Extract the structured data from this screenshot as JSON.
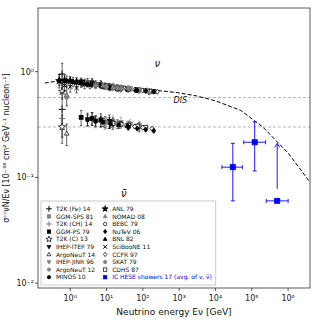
{
  "chart_data": {
    "type": "scatter",
    "xlabel": "Neutrino energy Eν [GeV]",
    "ylabel": "σᶜᶜνN/Eν [10⁻³⁸ cm² GeV⁻¹ nucleon⁻¹]",
    "log": true,
    "grid": false,
    "legend": "lower left",
    "xlim": [
      0.13,
      4000000.0
    ],
    "ylim": [
      0.009,
      4.0
    ],
    "xticks": [
      {
        "value": 1,
        "label": "10⁰"
      },
      {
        "value": 10,
        "label": "10¹"
      },
      {
        "value": 100,
        "label": "10²"
      },
      {
        "value": 1000,
        "label": "10³"
      },
      {
        "value": 10000,
        "label": "10⁴"
      },
      {
        "value": 100000,
        "label": "10⁵"
      },
      {
        "value": 1000000,
        "label": "10⁶"
      }
    ],
    "yticks": [
      {
        "value": 0.01,
        "label": "10⁻²"
      },
      {
        "value": 0.1,
        "label": "10⁻¹"
      },
      {
        "value": 1,
        "label": "10⁰"
      }
    ],
    "hlines": [
      0.57,
      0.3
    ],
    "series": [
      {
        "type": "line",
        "line_style": "dashed",
        "color": "black",
        "x": [
          0.2,
          0.5,
          1,
          2,
          5,
          10,
          30,
          100,
          300,
          1000,
          3000,
          10000,
          50000,
          200000,
          1000000,
          4000000
        ],
        "values": [
          0.78,
          0.82,
          0.83,
          0.83,
          0.8,
          0.77,
          0.73,
          0.69,
          0.66,
          0.63,
          0.59,
          0.53,
          0.43,
          0.3,
          0.17,
          0.09
        ]
      },
      {
        "type": "errorbar",
        "marker": "plus",
        "color": "black",
        "x": [
          0.6
        ],
        "values": [
          0.95
        ],
        "errors": [
          0.25
        ]
      },
      {
        "type": "errorbar",
        "marker": "plus",
        "color": "gray",
        "x": [
          0.6
        ],
        "values": [
          0.78
        ],
        "errors": [
          0.15
        ]
      },
      {
        "type": "errorbar",
        "marker": "star-open",
        "color": "black",
        "x": [
          0.6
        ],
        "values": [
          0.65
        ],
        "errors": [
          0.1
        ]
      },
      {
        "type": "errorbar",
        "marker": "triangle-up-open",
        "color": "black",
        "x": [
          0.8
        ],
        "values": [
          0.6
        ],
        "errors": [
          0.12
        ]
      },
      {
        "type": "errorbar",
        "marker": "circle",
        "color": "gray",
        "x": [
          0.8
        ],
        "values": [
          0.57
        ],
        "errors": [
          0.1
        ]
      },
      {
        "type": "errorbar",
        "marker": "star",
        "color": "black",
        "x": [
          0.5,
          0.7,
          1.0,
          1.5,
          2.5
        ],
        "values": [
          0.82,
          0.83,
          0.82,
          0.8,
          0.77
        ],
        "errors": [
          0.12,
          0.1,
          0.08,
          0.08,
          0.08
        ]
      },
      {
        "type": "errorbar",
        "marker": "circle-open",
        "color": "black",
        "x": [
          4,
          7,
          12,
          20,
          40,
          80,
          150
        ],
        "values": [
          0.8,
          0.77,
          0.73,
          0.71,
          0.69,
          0.67,
          0.65
        ],
        "errors": [
          0.06,
          0.05,
          0.04,
          0.04,
          0.04,
          0.04,
          0.04
        ]
      },
      {
        "type": "errorbar",
        "marker": "triangle-up",
        "color": "black",
        "x": [
          0.5,
          0.8,
          1.2,
          2.0,
          3.5
        ],
        "values": [
          0.84,
          0.82,
          0.8,
          0.78,
          0.75
        ],
        "errors": [
          0.1,
          0.09,
          0.08,
          0.07,
          0.06
        ]
      },
      {
        "type": "errorbar",
        "marker": "diamond-open",
        "color": "black",
        "x": [
          20,
          35,
          60,
          100,
          170,
          250
        ],
        "values": [
          0.7,
          0.685,
          0.675,
          0.665,
          0.655,
          0.645
        ],
        "errors": [
          0.015,
          0.012,
          0.01,
          0.009,
          0.009,
          0.009
        ]
      },
      {
        "type": "errorbar",
        "marker": "square-open",
        "color": "black",
        "x": [
          15,
          25,
          40,
          70,
          120,
          200
        ],
        "values": [
          0.71,
          0.695,
          0.68,
          0.67,
          0.66,
          0.65
        ],
        "errors": [
          0.02,
          0.018,
          0.015,
          0.013,
          0.012,
          0.012
        ]
      },
      {
        "type": "errorbar",
        "marker": "square",
        "color": "gray",
        "x": [
          15,
          25,
          45,
          80,
          130
        ],
        "values": [
          0.73,
          0.71,
          0.69,
          0.67,
          0.66
        ],
        "errors": [
          0.05,
          0.04,
          0.04,
          0.04,
          0.04
        ]
      },
      {
        "type": "errorbar",
        "marker": "square",
        "color": "black",
        "x": [
          2,
          4,
          7,
          12,
          20
        ],
        "values": [
          0.8,
          0.77,
          0.74,
          0.71,
          0.69
        ],
        "errors": [
          0.07,
          0.06,
          0.05,
          0.05,
          0.04
        ]
      },
      {
        "type": "errorbar",
        "marker": "triangle-down",
        "color": "black",
        "x": [
          3,
          5,
          9,
          15,
          25
        ],
        "values": [
          0.79,
          0.76,
          0.73,
          0.71,
          0.69
        ],
        "errors": [
          0.07,
          0.06,
          0.05,
          0.04,
          0.04
        ]
      },
      {
        "type": "errorbar",
        "marker": "triangle-down",
        "color": "gray",
        "x": [
          3,
          5,
          9,
          15,
          25
        ],
        "values": [
          0.78,
          0.75,
          0.72,
          0.7,
          0.68
        ],
        "errors": [
          0.06,
          0.05,
          0.04,
          0.04,
          0.04
        ]
      },
      {
        "type": "errorbar",
        "marker": "circle",
        "color": "black",
        "x": [
          3,
          5,
          8,
          13,
          22,
          38,
          65
        ],
        "values": [
          0.76,
          0.74,
          0.72,
          0.7,
          0.685,
          0.672,
          0.662
        ],
        "errors": [
          0.04,
          0.035,
          0.03,
          0.025,
          0.022,
          0.018,
          0.016
        ]
      },
      {
        "type": "errorbar",
        "marker": "triangle-up",
        "color": "gray",
        "x": [
          8,
          15,
          25,
          45,
          75,
          120
        ],
        "values": [
          0.74,
          0.71,
          0.695,
          0.68,
          0.668,
          0.658
        ],
        "errors": [
          0.04,
          0.03,
          0.025,
          0.022,
          0.018,
          0.016
        ]
      },
      {
        "type": "errorbar",
        "marker": "diamond",
        "color": "black",
        "x": [
          40,
          70,
          120,
          200
        ],
        "values": [
          0.675,
          0.665,
          0.657,
          0.648
        ],
        "errors": [
          0.012,
          0.01,
          0.009,
          0.009
        ]
      },
      {
        "type": "errorbar",
        "marker": "x",
        "color": "black",
        "x": [
          0.7,
          1.0,
          1.5
        ],
        "values": [
          0.74,
          0.72,
          0.7
        ],
        "errors": [
          0.09,
          0.08,
          0.07
        ]
      },
      {
        "type": "errorbar",
        "marker": "circle",
        "color": "gray",
        "x": [
          5,
          10,
          20,
          40
        ],
        "values": [
          0.74,
          0.72,
          0.7,
          0.69
        ],
        "errors": [
          0.05,
          0.04,
          0.04,
          0.04
        ]
      },
      {
        "type": "errorbar",
        "marker": "plus",
        "color": "black",
        "x": [
          0.6
        ],
        "values": [
          0.44
        ],
        "errors": [
          0.2
        ]
      },
      {
        "type": "errorbar",
        "marker": "plus",
        "color": "gray",
        "x": [
          0.6
        ],
        "values": [
          0.36
        ],
        "errors": [
          0.12
        ]
      },
      {
        "type": "errorbar",
        "marker": "star-open",
        "color": "black",
        "x": [
          0.6
        ],
        "values": [
          0.3
        ],
        "errors": [
          0.09
        ]
      },
      {
        "type": "errorbar",
        "marker": "triangle-up-open",
        "color": "black",
        "x": [
          0.8
        ],
        "values": [
          0.26
        ],
        "errors": [
          0.06
        ]
      },
      {
        "type": "errorbar",
        "marker": "circle-open",
        "color": "black",
        "x": [
          4,
          7,
          12,
          20,
          40,
          80
        ],
        "values": [
          0.36,
          0.34,
          0.33,
          0.32,
          0.31,
          0.3
        ],
        "errors": [
          0.05,
          0.04,
          0.04,
          0.03,
          0.03,
          0.03
        ]
      },
      {
        "type": "errorbar",
        "marker": "square",
        "color": "gray",
        "x": [
          15,
          25,
          45,
          80
        ],
        "values": [
          0.34,
          0.33,
          0.32,
          0.31
        ],
        "errors": [
          0.04,
          0.04,
          0.03,
          0.03
        ]
      },
      {
        "type": "errorbar",
        "marker": "square",
        "color": "black",
        "x": [
          2,
          4,
          7,
          12
        ],
        "values": [
          0.37,
          0.36,
          0.35,
          0.34
        ],
        "errors": [
          0.06,
          0.05,
          0.05,
          0.05
        ]
      },
      {
        "type": "errorbar",
        "marker": "triangle-down",
        "color": "black",
        "x": [
          3,
          5,
          9,
          15
        ],
        "values": [
          0.355,
          0.345,
          0.335,
          0.325
        ],
        "errors": [
          0.05,
          0.04,
          0.04,
          0.04
        ]
      },
      {
        "type": "errorbar",
        "marker": "triangle-down",
        "color": "gray",
        "x": [
          3,
          5,
          9,
          15
        ],
        "values": [
          0.345,
          0.335,
          0.325,
          0.315
        ],
        "errors": [
          0.04,
          0.04,
          0.04,
          0.03
        ]
      },
      {
        "type": "errorbar",
        "marker": "square-open",
        "color": "black",
        "x": [
          15,
          25,
          40,
          70,
          120
        ],
        "values": [
          0.325,
          0.318,
          0.312,
          0.305,
          0.298
        ],
        "errors": [
          0.02,
          0.018,
          0.015,
          0.013,
          0.012
        ]
      },
      {
        "type": "errorbar",
        "marker": "diamond-open",
        "color": "black",
        "x": [
          20,
          35,
          60,
          100,
          180
        ],
        "values": [
          0.318,
          0.31,
          0.303,
          0.296,
          0.289
        ],
        "errors": [
          0.015,
          0.013,
          0.011,
          0.01,
          0.01
        ]
      },
      {
        "type": "errorbar",
        "marker": "circle",
        "color": "gray",
        "x": [
          5,
          10,
          20
        ],
        "values": [
          0.34,
          0.33,
          0.32
        ],
        "errors": [
          0.04,
          0.04,
          0.03
        ]
      },
      {
        "type": "errorbar",
        "marker": "diamond",
        "color": "black",
        "x": [
          40,
          70,
          120,
          200
        ],
        "values": [
          0.298,
          0.29,
          0.283,
          0.276
        ],
        "errors": [
          0.012,
          0.01,
          0.009,
          0.009
        ]
      },
      {
        "type": "errorbar",
        "marker": "circle",
        "color": "black",
        "x": [
          3,
          5,
          8,
          13,
          22,
          38
        ],
        "values": [
          0.35,
          0.34,
          0.332,
          0.322,
          0.313,
          0.305
        ],
        "errors": [
          0.04,
          0.035,
          0.03,
          0.025,
          0.022,
          0.018
        ]
      },
      {
        "type": "errorbar_xy",
        "marker": "square",
        "color": "blue",
        "x": [
          30000,
          120000
        ],
        "values": [
          0.125,
          0.215
        ],
        "xerr_lo": [
          15000,
          60000
        ],
        "xerr_hi": [
          25000,
          120000
        ],
        "yerr_lo": [
          0.065,
          0.1
        ],
        "yerr_hi": [
          0.085,
          0.12
        ]
      },
      {
        "type": "lower_limit",
        "marker": "square",
        "color": "blue",
        "x": [
          500000
        ],
        "values": [
          0.06
        ],
        "xerr_lo": [
          250000
        ],
        "xerr_hi": [
          500000
        ]
      }
    ],
    "annotations": [
      {
        "text": "ν",
        "x": 250,
        "y": 1.05
      },
      {
        "text": "ν̄",
        "x": 30,
        "y": 0.077
      },
      {
        "text": "DIS",
        "x": 700,
        "y": 0.5
      }
    ],
    "legend_entries": [
      {
        "name": "T2K (Fe) 14",
        "marker": "plus",
        "color": "black"
      },
      {
        "name": "GGM-SPS 81",
        "marker": "square",
        "color": "gray"
      },
      {
        "name": "T2K (CH) 14",
        "marker": "plus",
        "color": "gray"
      },
      {
        "name": "GGM-PS 79",
        "marker": "square",
        "color": "black"
      },
      {
        "name": "T2K (C) 13",
        "marker": "star-open",
        "color": "black"
      },
      {
        "name": "IHEP-ITEP 79",
        "marker": "triangle-down",
        "color": "black"
      },
      {
        "name": "ArgoNeuT 14",
        "marker": "triangle-up-open",
        "color": "black"
      },
      {
        "name": "IHEP-JINR 96",
        "marker": "triangle-down",
        "color": "gray"
      },
      {
        "name": "ArgoNeuT 12",
        "marker": "circle",
        "color": "gray"
      },
      {
        "name": "MINOS 10",
        "marker": "circle",
        "color": "black"
      },
      {
        "name": "ANL 79",
        "marker": "star",
        "color": "black"
      },
      {
        "name": "NOMAD 08",
        "marker": "triangle-up",
        "color": "gray"
      },
      {
        "name": "BEBC 79",
        "marker": "circle-open",
        "color": "black"
      },
      {
        "name": "NuTeV 06",
        "marker": "diamond",
        "color": "black"
      },
      {
        "name": "BNL 82",
        "marker": "triangle-up",
        "color": "black"
      },
      {
        "name": "SciBooNE 11",
        "marker": "x",
        "color": "black"
      },
      {
        "name": "CCFR 97",
        "marker": "diamond-open",
        "color": "black"
      },
      {
        "name": "SKAT 79",
        "marker": "circle",
        "color": "gray"
      },
      {
        "name": "CDHS 87",
        "marker": "square-open",
        "color": "black"
      },
      {
        "name": "IC HESE showers 17 (avg. of ν, ν̄)",
        "marker": "square",
        "color": "blue"
      }
    ]
  }
}
